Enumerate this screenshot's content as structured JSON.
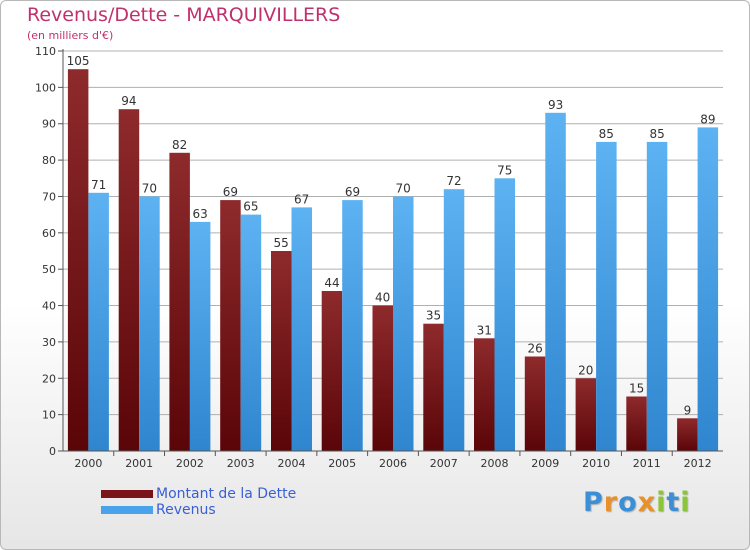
{
  "colors": {
    "dette": "#7a1418",
    "revenus": "#4aa3ea",
    "title": "#c0306e",
    "legend_text": "#3a5fd6"
  },
  "chart_data": {
    "type": "bar",
    "title": "Revenus/Dette - MARQUIVILLERS",
    "subtitle": "(en milliers d'€)",
    "categories": [
      "2000",
      "2001",
      "2002",
      "2003",
      "2004",
      "2005",
      "2006",
      "2007",
      "2008",
      "2009",
      "2010",
      "2011",
      "2012"
    ],
    "series": [
      {
        "name": "Montant de la Dette",
        "values": [
          105,
          94,
          82,
          69,
          55,
          44,
          40,
          35,
          31,
          26,
          20,
          15,
          9
        ]
      },
      {
        "name": "Revenus",
        "values": [
          71,
          70,
          63,
          65,
          67,
          69,
          70,
          72,
          75,
          93,
          85,
          85,
          89
        ]
      }
    ],
    "yticks": [
      0,
      10,
      20,
      30,
      40,
      50,
      60,
      70,
      80,
      90,
      100,
      110
    ],
    "ylim": [
      0,
      110
    ],
    "grid": true,
    "legend_position": "bottom-left"
  },
  "logo": {
    "letters": [
      "P",
      "r",
      "o",
      "x",
      "i",
      "t",
      "i"
    ],
    "colors": [
      "#3a8fd6",
      "#e8912a",
      "#3a8fd6",
      "#e8912a",
      "#8cc43c",
      "#3a8fd6",
      "#8cc43c"
    ]
  }
}
